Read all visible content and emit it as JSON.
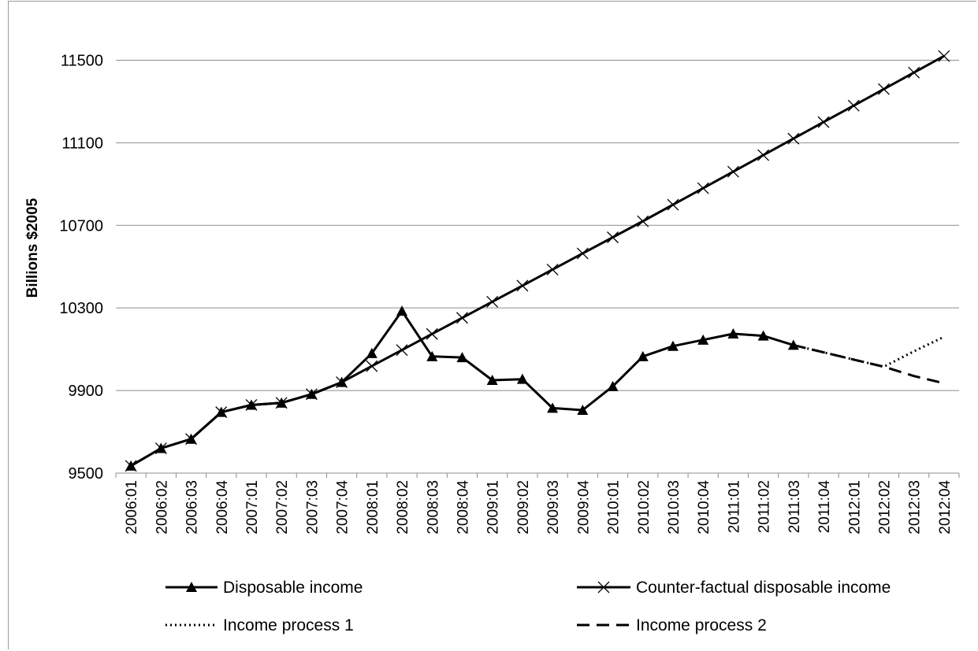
{
  "chart_data": {
    "type": "line",
    "title": "",
    "xlabel": "",
    "ylabel": "Billions $2005",
    "ylim": [
      9500,
      11700
    ],
    "yticks": [
      9500,
      9900,
      10300,
      10700,
      11100,
      11500
    ],
    "grid": true,
    "legend_position": "bottom",
    "x": [
      "2006:01",
      "2006:02",
      "2006:03",
      "2006:04",
      "2007:01",
      "2007:02",
      "2007:03",
      "2007:04",
      "2008:01",
      "2008:02",
      "2008:03",
      "2008:04",
      "2009:01",
      "2009:02",
      "2009:03",
      "2009:04",
      "2010:01",
      "2010:02",
      "2010:03",
      "2010:04",
      "2011:01",
      "2011:02",
      "2011:03",
      "2011:04",
      "2012:01",
      "2012:02",
      "2012:03",
      "2012:04"
    ],
    "series": [
      {
        "name": "Disposable income",
        "marker": "triangle",
        "style": "solid",
        "values": [
          9535,
          9620,
          9665,
          9795,
          9830,
          9840,
          9882,
          9940,
          10080,
          10285,
          10065,
          10060,
          9950,
          9955,
          9815,
          9805,
          9920,
          10065,
          10115,
          10145,
          10175,
          10165,
          10120,
          null,
          null,
          null,
          null,
          null
        ]
      },
      {
        "name": "Counter-factual disposable income",
        "marker": "x",
        "style": "solid",
        "values": [
          9535,
          9620,
          9665,
          9795,
          9830,
          9840,
          9882,
          9940,
          10018,
          10096,
          10174,
          10252,
          10330,
          10408,
          10486,
          10564,
          10642,
          10720,
          10800,
          10880,
          10960,
          11040,
          11120,
          11200,
          11280,
          11360,
          11440,
          11520
        ]
      },
      {
        "name": "Income process 1",
        "marker": "none",
        "style": "dotted",
        "values": [
          null,
          null,
          null,
          null,
          null,
          null,
          null,
          null,
          null,
          null,
          null,
          null,
          null,
          null,
          null,
          null,
          null,
          null,
          null,
          null,
          null,
          null,
          10120,
          10085,
          10050,
          10015,
          10090,
          10160
        ]
      },
      {
        "name": "Income process 2",
        "marker": "none",
        "style": "dashed",
        "values": [
          null,
          null,
          null,
          null,
          null,
          null,
          null,
          null,
          null,
          null,
          null,
          null,
          null,
          null,
          null,
          null,
          null,
          null,
          null,
          null,
          null,
          null,
          10120,
          10085,
          10050,
          10015,
          9970,
          9935
        ]
      }
    ],
    "colors": {
      "line": "#000000",
      "grid": "#8c8c8c",
      "frame": "#9a9a9a"
    }
  }
}
